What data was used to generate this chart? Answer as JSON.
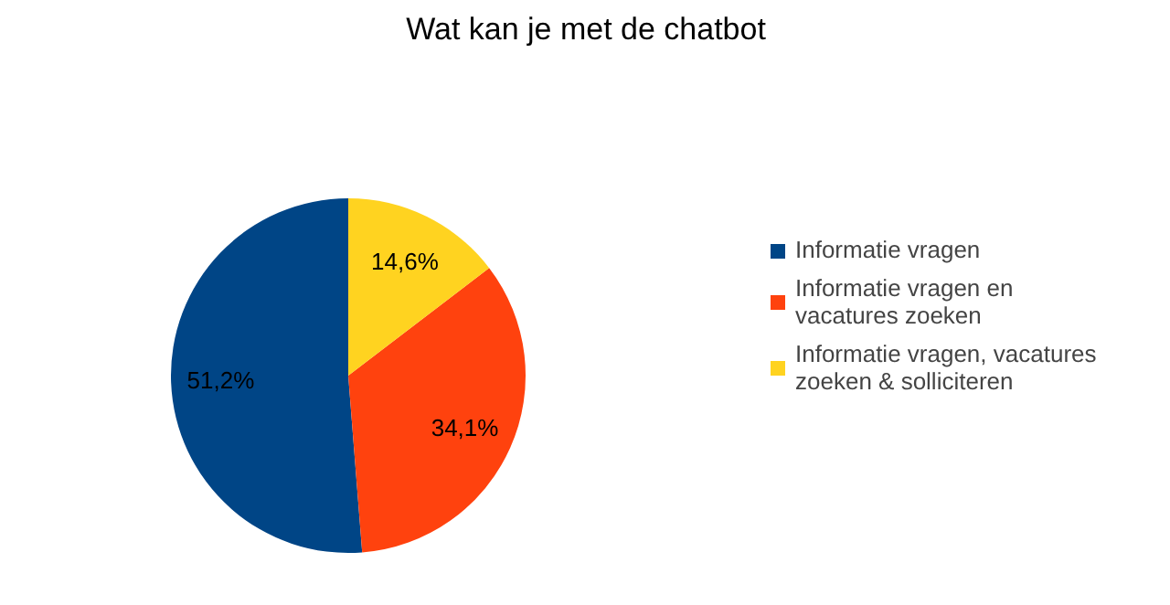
{
  "chart_data": {
    "type": "pie",
    "title": "Wat kan je met de chatbot",
    "categories": [
      "Informatie vragen",
      "Informatie vragen en vacatures zoeken",
      "Informatie vragen, vacatures zoeken & solliciteren"
    ],
    "values": [
      51.2,
      34.1,
      14.6
    ],
    "value_labels": [
      "51,2%",
      "34,1%",
      "14,6%"
    ],
    "colors": [
      "#004586",
      "#ff420e",
      "#ffd320"
    ],
    "legend": "right"
  }
}
